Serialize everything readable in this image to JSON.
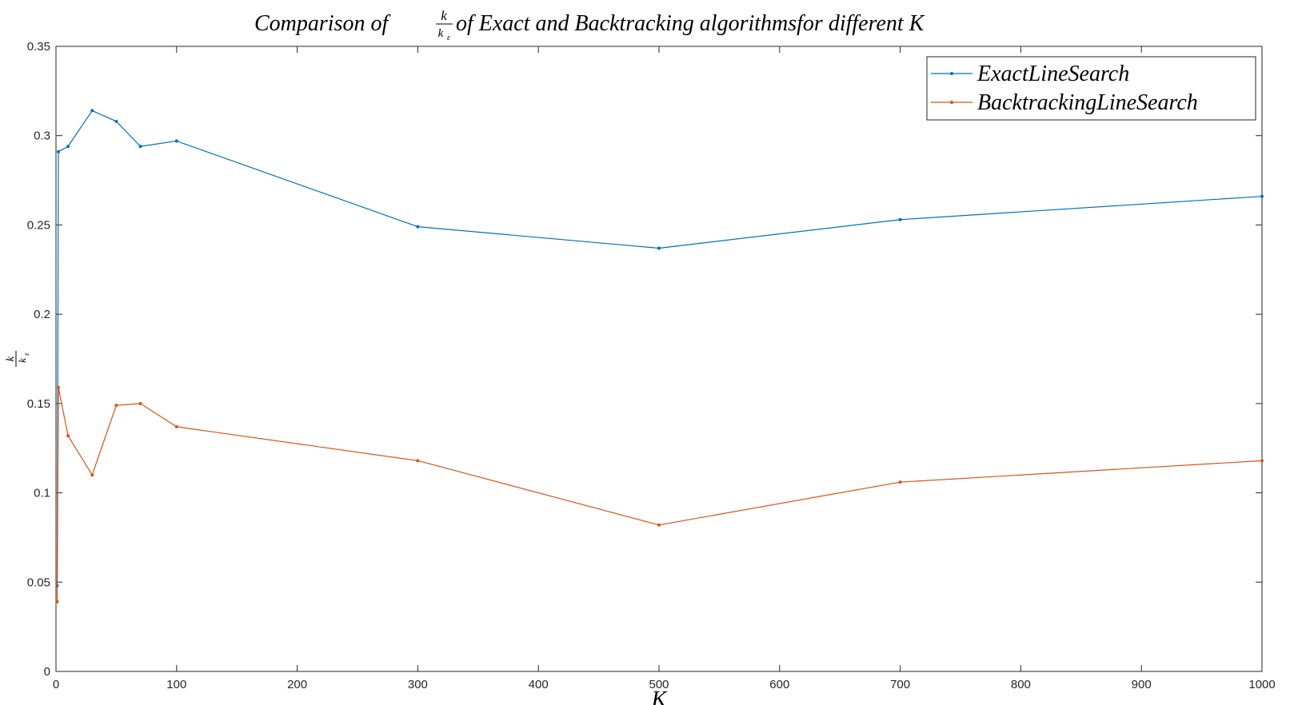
{
  "chart_data": {
    "type": "line",
    "title": {
      "before": "Comparison of ",
      "frac_numerator": "k",
      "frac_denominator": "k",
      "frac_denominator_subscript": "ε",
      "after": " of Exact and Backtracking algorithmsfor different K"
    },
    "xlabel": "K",
    "ylabel": {
      "numerator": "k",
      "denominator": "k",
      "denominator_subscript": "ε"
    },
    "xlim": [
      0,
      1000
    ],
    "ylim": [
      0,
      0.35
    ],
    "xticks": [
      0,
      100,
      200,
      300,
      400,
      500,
      600,
      700,
      800,
      900,
      1000
    ],
    "xtick_labels": [
      "0",
      "100",
      "200",
      "300",
      "400",
      "500",
      "600",
      "700",
      "800",
      "900",
      "1000"
    ],
    "yticks": [
      0,
      0.05,
      0.1,
      0.15,
      0.2,
      0.25,
      0.3,
      0.35
    ],
    "ytick_labels": [
      "0",
      "0.05",
      "0.1",
      "0.15",
      "0.2",
      "0.25",
      "0.3",
      "0.35"
    ],
    "grid": false,
    "legend_position": "top-right",
    "series": [
      {
        "name": "ExactLineSearch",
        "color": "#0072bd",
        "marker": "point",
        "x": [
          1,
          2,
          10,
          30,
          50,
          70,
          100,
          300,
          500,
          700,
          1000
        ],
        "y": [
          0.048,
          0.291,
          0.294,
          0.314,
          0.308,
          0.294,
          0.297,
          0.249,
          0.237,
          0.253,
          0.266
        ]
      },
      {
        "name": "BacktrackingLineSearch",
        "color": "#d95319",
        "marker": "point",
        "x": [
          1,
          2,
          10,
          30,
          50,
          70,
          100,
          300,
          500,
          700,
          1000
        ],
        "y": [
          0.039,
          0.159,
          0.132,
          0.11,
          0.149,
          0.15,
          0.137,
          0.118,
          0.082,
          0.106,
          0.118
        ]
      }
    ]
  }
}
